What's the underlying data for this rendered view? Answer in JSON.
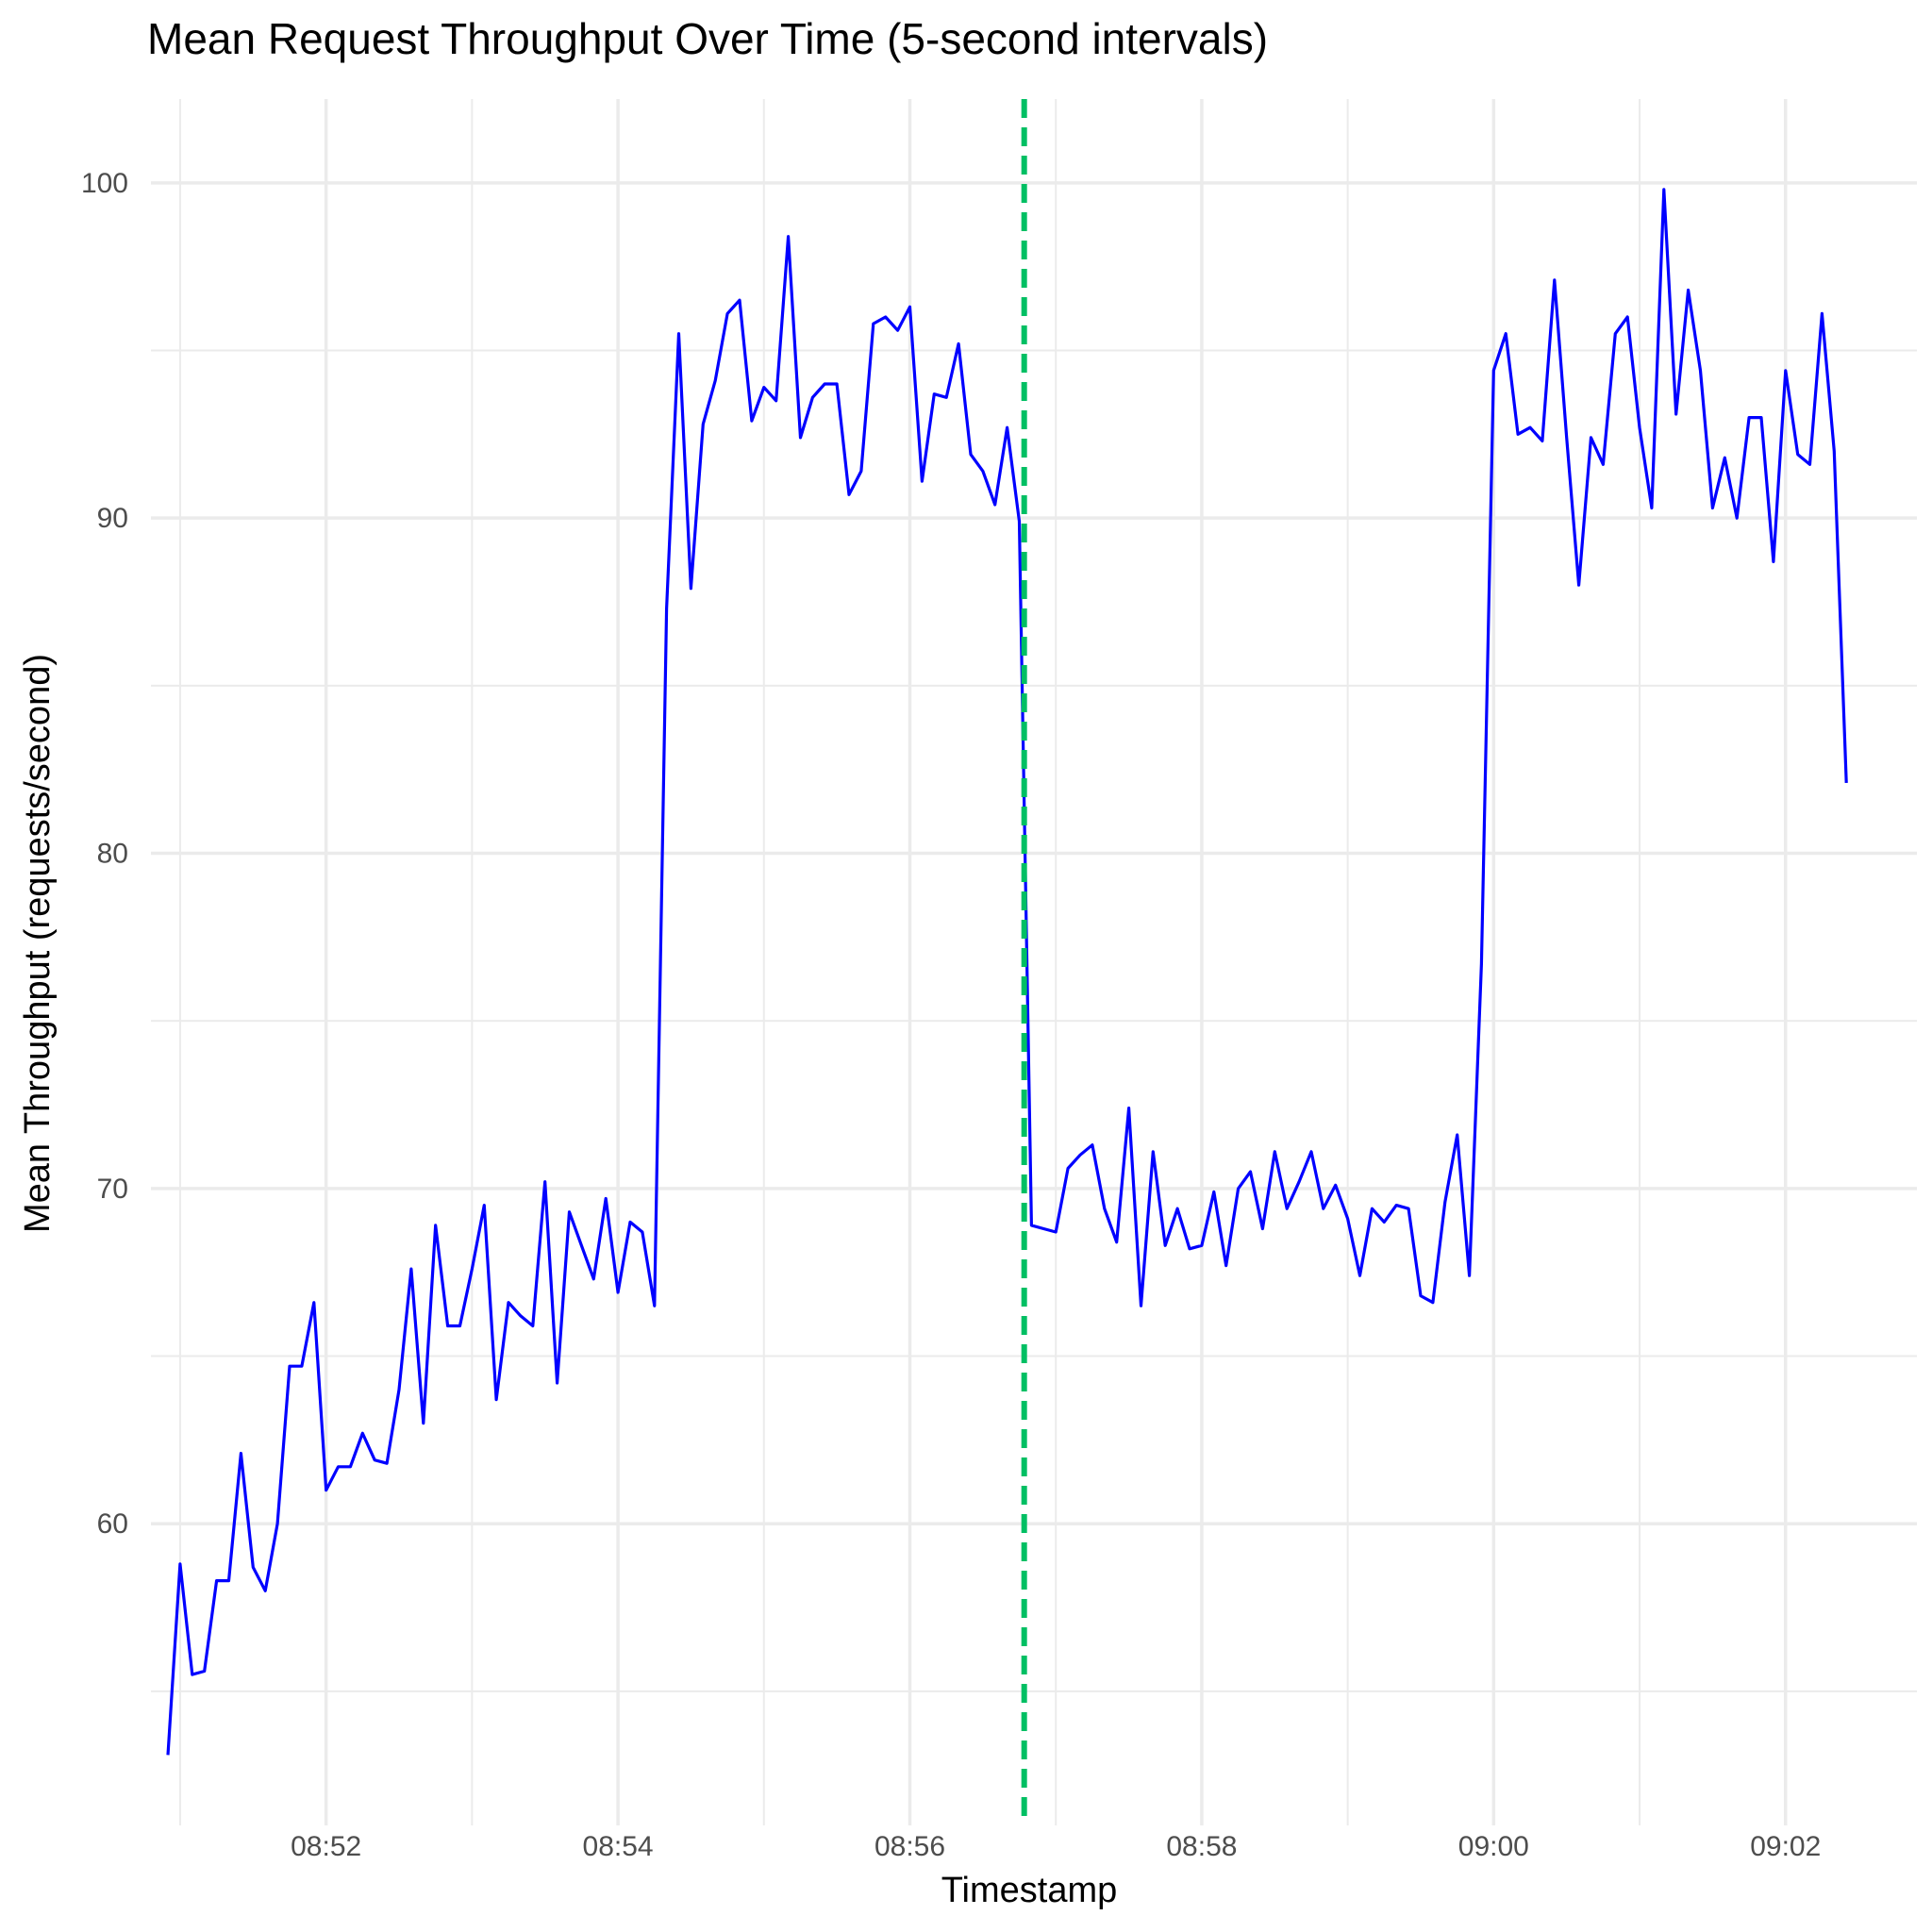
{
  "chart_data": {
    "type": "line",
    "title": "Mean Request Throughput Over Time (5-second intervals)",
    "xlabel": "Timestamp",
    "ylabel": "Mean Throughput (requests/second)",
    "x_ticks": [
      "08:52",
      "08:54",
      "08:56",
      "08:58",
      "09:00",
      "09:02"
    ],
    "y_ticks": [
      60,
      70,
      80,
      90,
      100
    ],
    "ylim": [
      51,
      102.5
    ],
    "xlim": [
      "08:50:48",
      "09:02:54"
    ],
    "grid": true,
    "legend": "none",
    "series": [
      {
        "color": "#0000ff",
        "x_start": "08:50:55",
        "interval_seconds": 5,
        "values": [
          53.1,
          58.8,
          55.5,
          55.6,
          58.3,
          58.3,
          62.1,
          58.7,
          58.0,
          60.0,
          64.7,
          64.7,
          66.6,
          61.0,
          61.7,
          61.7,
          62.7,
          61.9,
          61.8,
          64.0,
          67.6,
          63.0,
          68.9,
          65.9,
          65.9,
          67.6,
          69.5,
          63.7,
          66.6,
          66.2,
          65.9,
          70.2,
          64.2,
          69.3,
          68.3,
          67.3,
          69.7,
          66.9,
          69.0,
          68.7,
          66.5,
          87.3,
          95.5,
          87.9,
          92.8,
          94.1,
          96.1,
          96.5,
          92.9,
          93.9,
          93.5,
          98.4,
          92.4,
          93.6,
          94.0,
          94.0,
          90.7,
          91.4,
          95.8,
          96.0,
          95.6,
          96.3,
          91.1,
          93.7,
          93.6,
          95.2,
          91.9,
          91.4,
          90.4,
          92.7,
          89.9,
          68.9,
          68.8,
          68.7,
          70.6,
          71.0,
          71.3,
          69.4,
          68.4,
          72.4,
          66.5,
          71.1,
          68.3,
          69.4,
          68.2,
          68.3,
          69.9,
          67.7,
          70.0,
          70.5,
          68.8,
          71.1,
          69.4,
          70.2,
          71.1,
          69.4,
          70.1,
          69.1,
          67.4,
          69.4,
          69.0,
          69.5,
          69.4,
          66.8,
          66.6,
          69.6,
          71.6,
          67.4,
          76.7,
          94.4,
          95.5,
          92.5,
          92.7,
          92.3,
          97.1,
          92.4,
          88.0,
          92.4,
          91.6,
          95.5,
          96.0,
          92.7,
          90.3,
          99.8,
          93.1,
          96.8,
          94.4,
          90.3,
          91.8,
          90.0,
          93.0,
          93.0,
          88.7,
          94.4,
          91.9,
          91.6,
          96.1,
          92.0,
          82.1
        ]
      }
    ],
    "annotations": [
      {
        "type": "vline",
        "x": "08:56:47",
        "color": "#00bf63",
        "style": "dashed"
      }
    ]
  }
}
